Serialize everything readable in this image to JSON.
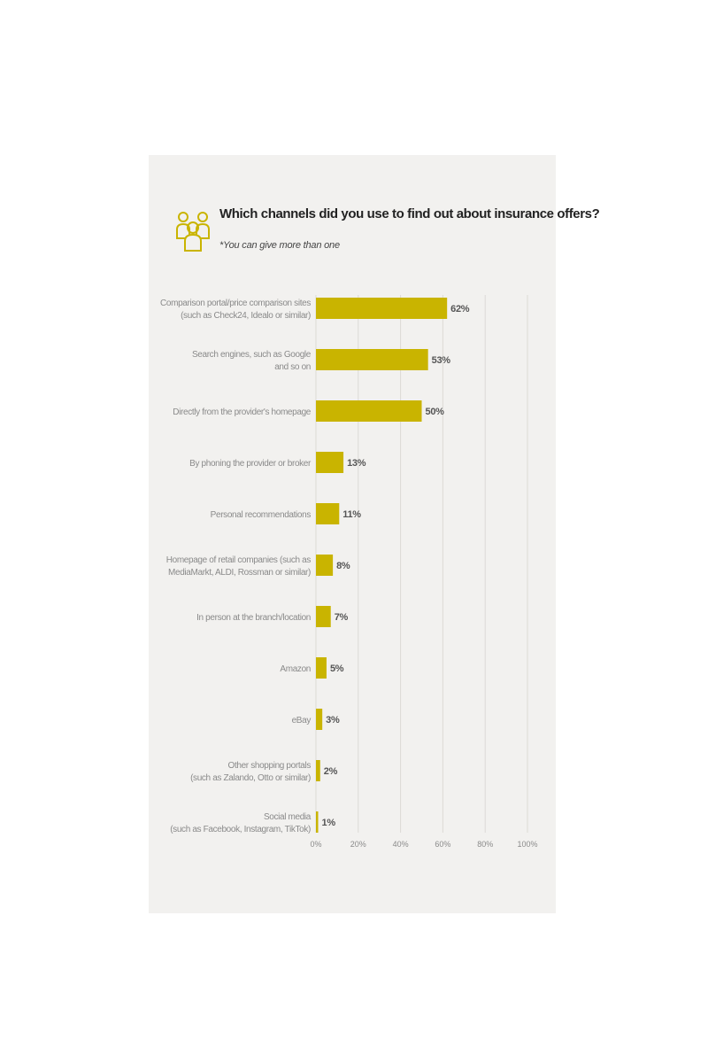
{
  "colors": {
    "bar": "#c9b400",
    "background": "#f2f1ef",
    "grid": "#dcdad6",
    "label": "#8a8a8a",
    "value_label": "#555555"
  },
  "header": {
    "icon": "people-group-icon",
    "title": "Which channels did you use to find out about insurance offers?",
    "subtitle": "*You can give more than one"
  },
  "chart_data": {
    "type": "bar",
    "orientation": "horizontal",
    "title": "Which channels did you use to find out about insurance offers?",
    "subtitle": "*You can give more than one",
    "xlim": [
      0,
      100
    ],
    "grid": true,
    "ticks": [
      "0%",
      "20%",
      "40%",
      "60%",
      "80%",
      "100%"
    ],
    "categories": [
      [
        "Comparison portal/price comparison sites",
        "(such as Check24, Idealo or similar)"
      ],
      [
        "Search engines, such as Google",
        "and so on"
      ],
      [
        "Directly from the provider's homepage"
      ],
      [
        "By phoning the provider or broker"
      ],
      [
        "Personal recommendations"
      ],
      [
        "Homepage of retail companies (such as",
        "MediaMarkt, ALDI, Rossman or similar)"
      ],
      [
        "In person at the branch/location"
      ],
      [
        "Amazon"
      ],
      [
        "eBay"
      ],
      [
        "Other shopping portals",
        "(such as Zalando, Otto or similar)"
      ],
      [
        "Social media",
        "(such as Facebook, Instagram, TikTok)"
      ]
    ],
    "values": [
      62,
      53,
      50,
      13,
      11,
      8,
      7,
      5,
      3,
      2,
      1
    ],
    "value_labels": [
      "62%",
      "53%",
      "50%",
      "13%",
      "11%",
      "8%",
      "7%",
      "5%",
      "3%",
      "2%",
      "1%"
    ]
  }
}
